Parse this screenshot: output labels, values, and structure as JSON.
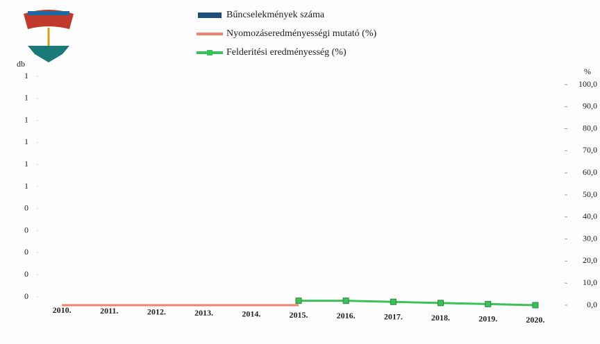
{
  "chart_data": {
    "type": "combo",
    "y_label": "db",
    "y2_label": "%",
    "categories": [
      "2010.",
      "2011.",
      "2012.",
      "2013.",
      "2014.",
      "2015.",
      "2016.",
      "2017.",
      "2018.",
      "2019.",
      "2020."
    ],
    "ylim": [
      0,
      1
    ],
    "yticks": [
      {
        "value": 0,
        "label": "0"
      },
      {
        "value": 0.1,
        "label": "0"
      },
      {
        "value": 0.2,
        "label": "0"
      },
      {
        "value": 0.3,
        "label": "0"
      },
      {
        "value": 0.4,
        "label": "0"
      },
      {
        "value": 0.5,
        "label": "1"
      },
      {
        "value": 0.6,
        "label": "1"
      },
      {
        "value": 0.7,
        "label": "1"
      },
      {
        "value": 0.8,
        "label": "1"
      },
      {
        "value": 0.9,
        "label": "1"
      },
      {
        "value": 1,
        "label": "1"
      }
    ],
    "y2lim": [
      0,
      100
    ],
    "y2ticks": [
      {
        "value": 0,
        "label": "0,0"
      },
      {
        "value": 10,
        "label": "10,0"
      },
      {
        "value": 20,
        "label": "20,0"
      },
      {
        "value": 30,
        "label": "30,0"
      },
      {
        "value": 40,
        "label": "40,0"
      },
      {
        "value": 50,
        "label": "50,0"
      },
      {
        "value": 60,
        "label": "60,0"
      },
      {
        "value": 70,
        "label": "70,0"
      },
      {
        "value": 80,
        "label": "80,0"
      },
      {
        "value": 90,
        "label": "90,0"
      },
      {
        "value": 100,
        "label": "100,0"
      }
    ],
    "series": [
      {
        "name": "Bűncselekmények száma",
        "type": "bar",
        "color": "#1f4e79",
        "values": [
          0,
          0,
          0,
          0,
          0,
          0,
          0,
          0,
          0,
          0,
          0
        ]
      },
      {
        "name": "Nyomozáseredményességi mutató (%)",
        "type": "line",
        "axis": "y2",
        "color": "#f08070",
        "values": [
          0,
          0,
          0,
          0,
          0,
          0,
          null,
          null,
          null,
          null,
          null
        ]
      },
      {
        "name": "Felderitési eredményesség (%)",
        "type": "line",
        "axis": "y2",
        "color": "#3cc05a",
        "marker": "square",
        "values": [
          null,
          null,
          null,
          null,
          null,
          2,
          2,
          1.5,
          1,
          0.5,
          0
        ]
      }
    ]
  }
}
